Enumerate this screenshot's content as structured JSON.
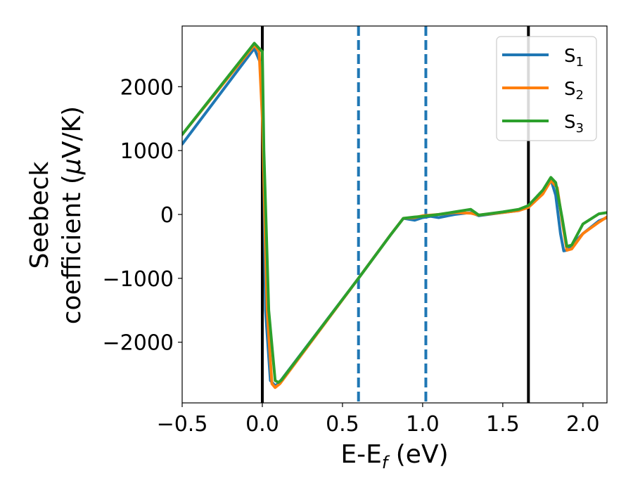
{
  "chart_data": {
    "type": "line",
    "xlabel": {
      "main": "E-E",
      "sub": "f",
      "tail": " (eV)"
    },
    "ylabel": {
      "line1": "Seebeck",
      "line2_pre": "coefficient  (",
      "mu": "μ",
      "line2_post": "V/K)"
    },
    "xlim": [
      -0.5,
      2.15
    ],
    "ylim": [
      -2950,
      2950
    ],
    "xticks": [
      -0.5,
      0.0,
      0.5,
      1.0,
      1.5,
      2.0
    ],
    "xtick_labels": [
      "−0.5",
      "0.0",
      "0.5",
      "1.0",
      "1.5",
      "2.0"
    ],
    "yticks": [
      -2000,
      -1000,
      0,
      1000,
      2000
    ],
    "ytick_labels": [
      "−2000",
      "−1000",
      "0",
      "1000",
      "2000"
    ],
    "grid": false,
    "legend_position": "top-right",
    "vlines": [
      {
        "x": 0.0,
        "style": "solid",
        "color": "#000000"
      },
      {
        "x": 0.6,
        "style": "dashed",
        "color": "#1f77b4"
      },
      {
        "x": 1.02,
        "style": "dashed",
        "color": "#1f77b4"
      },
      {
        "x": 1.66,
        "style": "solid",
        "color": "#000000"
      }
    ],
    "series": [
      {
        "name": "S",
        "sub": "1",
        "color": "#1f77b4",
        "points": [
          [
            -0.5,
            1100
          ],
          [
            -0.05,
            2600
          ],
          [
            0.0,
            2300
          ],
          [
            0.02,
            -1500
          ],
          [
            0.05,
            -2600
          ],
          [
            0.08,
            -2680
          ],
          [
            0.1,
            -2650
          ],
          [
            0.6,
            -1000
          ],
          [
            0.8,
            -320
          ],
          [
            0.88,
            -60
          ],
          [
            0.95,
            -90
          ],
          [
            1.0,
            -50
          ],
          [
            1.05,
            -30
          ],
          [
            1.1,
            -50
          ],
          [
            1.2,
            0
          ],
          [
            1.3,
            30
          ],
          [
            1.35,
            -20
          ],
          [
            1.5,
            30
          ],
          [
            1.6,
            60
          ],
          [
            1.66,
            120
          ],
          [
            1.75,
            350
          ],
          [
            1.8,
            550
          ],
          [
            1.83,
            300
          ],
          [
            1.86,
            -300
          ],
          [
            1.88,
            -570
          ],
          [
            1.9,
            -560
          ],
          [
            2.0,
            -300
          ],
          [
            2.1,
            -100
          ],
          [
            2.15,
            -50
          ]
        ]
      },
      {
        "name": "S",
        "sub": "2",
        "color": "#ff7f0e",
        "points": [
          [
            -0.5,
            1250
          ],
          [
            -0.05,
            2650
          ],
          [
            -0.02,
            2550
          ],
          [
            0.0,
            1500
          ],
          [
            0.03,
            -1500
          ],
          [
            0.06,
            -2650
          ],
          [
            0.08,
            -2710
          ],
          [
            0.11,
            -2650
          ],
          [
            0.6,
            -1000
          ],
          [
            0.8,
            -320
          ],
          [
            0.88,
            -60
          ],
          [
            0.95,
            -50
          ],
          [
            1.0,
            -20
          ],
          [
            1.1,
            0
          ],
          [
            1.2,
            30
          ],
          [
            1.3,
            20
          ],
          [
            1.35,
            -10
          ],
          [
            1.5,
            30
          ],
          [
            1.6,
            60
          ],
          [
            1.66,
            110
          ],
          [
            1.75,
            320
          ],
          [
            1.8,
            530
          ],
          [
            1.84,
            420
          ],
          [
            1.87,
            -100
          ],
          [
            1.9,
            -560
          ],
          [
            1.93,
            -540
          ],
          [
            2.0,
            -300
          ],
          [
            2.1,
            -120
          ],
          [
            2.15,
            -40
          ]
        ]
      },
      {
        "name": "S",
        "sub": "3",
        "color": "#2ca02c",
        "points": [
          [
            -0.5,
            1250
          ],
          [
            -0.05,
            2680
          ],
          [
            -0.02,
            2600
          ],
          [
            0.0,
            2550
          ],
          [
            0.01,
            1000
          ],
          [
            0.04,
            -1500
          ],
          [
            0.08,
            -2600
          ],
          [
            0.1,
            -2630
          ],
          [
            0.12,
            -2590
          ],
          [
            0.6,
            -1000
          ],
          [
            0.8,
            -320
          ],
          [
            0.88,
            -60
          ],
          [
            0.95,
            -40
          ],
          [
            1.0,
            -30
          ],
          [
            1.1,
            0
          ],
          [
            1.2,
            40
          ],
          [
            1.3,
            80
          ],
          [
            1.35,
            -10
          ],
          [
            1.5,
            40
          ],
          [
            1.6,
            80
          ],
          [
            1.66,
            140
          ],
          [
            1.75,
            380
          ],
          [
            1.8,
            580
          ],
          [
            1.83,
            500
          ],
          [
            1.87,
            -50
          ],
          [
            1.9,
            -500
          ],
          [
            1.93,
            -480
          ],
          [
            2.0,
            -150
          ],
          [
            2.1,
            10
          ],
          [
            2.15,
            30
          ]
        ]
      }
    ]
  }
}
